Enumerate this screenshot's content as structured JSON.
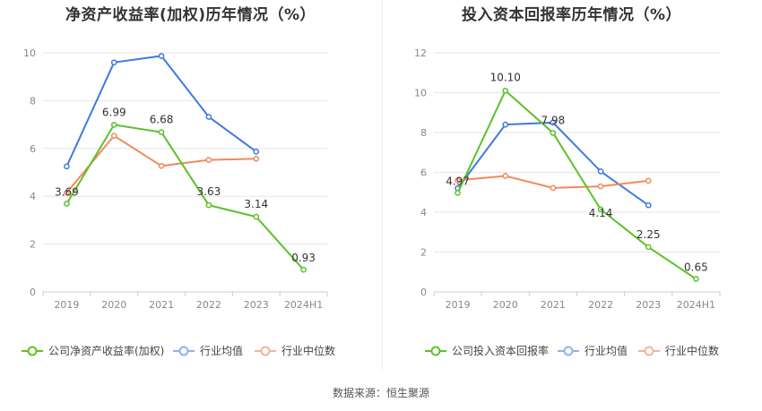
{
  "source_text": "数据来源：恒生聚源",
  "chart_data": [
    {
      "type": "line",
      "title": "净资产收益率(加权)历年情况（%）",
      "categories": [
        "2019",
        "2020",
        "2021",
        "2022",
        "2023",
        "2024H1"
      ],
      "ylim": [
        0,
        10
      ],
      "yticks": [
        0,
        2,
        4,
        6,
        8,
        10
      ],
      "grid": true,
      "legend_position": "bottom",
      "series": [
        {
          "name": "公司净资产收益率(加权)",
          "color": "#5cc12a",
          "values": [
            3.69,
            6.99,
            6.68,
            3.63,
            3.14,
            0.93
          ],
          "labels": [
            "3.69",
            "6.99",
            "6.68",
            "3.63",
            "3.14",
            "0.93"
          ]
        },
        {
          "name": "行业均值",
          "color": "#3f7ae0",
          "values": [
            5.25,
            9.6,
            9.87,
            7.32,
            5.87,
            null
          ]
        },
        {
          "name": "行业中位数",
          "color": "#f08a5d",
          "values": [
            4.15,
            6.53,
            5.27,
            5.52,
            5.57,
            null
          ]
        }
      ]
    },
    {
      "type": "line",
      "title": "投入资本回报率历年情况（%）",
      "categories": [
        "2019",
        "2020",
        "2021",
        "2022",
        "2023",
        "2024H1"
      ],
      "ylim": [
        0,
        12
      ],
      "yticks": [
        0,
        2,
        4,
        6,
        8,
        10,
        12
      ],
      "grid": true,
      "legend_position": "bottom",
      "series": [
        {
          "name": "公司投入资本回报率",
          "color": "#5cc12a",
          "values": [
            4.97,
            10.1,
            7.98,
            4.14,
            2.25,
            0.65
          ],
          "labels": [
            "4.97",
            "10.10",
            "7.98",
            "4.14",
            "2.25",
            "0.65"
          ]
        },
        {
          "name": "行业均值",
          "color": "#3f7ae0",
          "values": [
            5.2,
            8.4,
            8.5,
            6.05,
            4.35,
            null
          ]
        },
        {
          "name": "行业中位数",
          "color": "#f08a5d",
          "values": [
            5.6,
            5.82,
            5.22,
            5.3,
            5.58,
            null
          ]
        }
      ]
    }
  ]
}
